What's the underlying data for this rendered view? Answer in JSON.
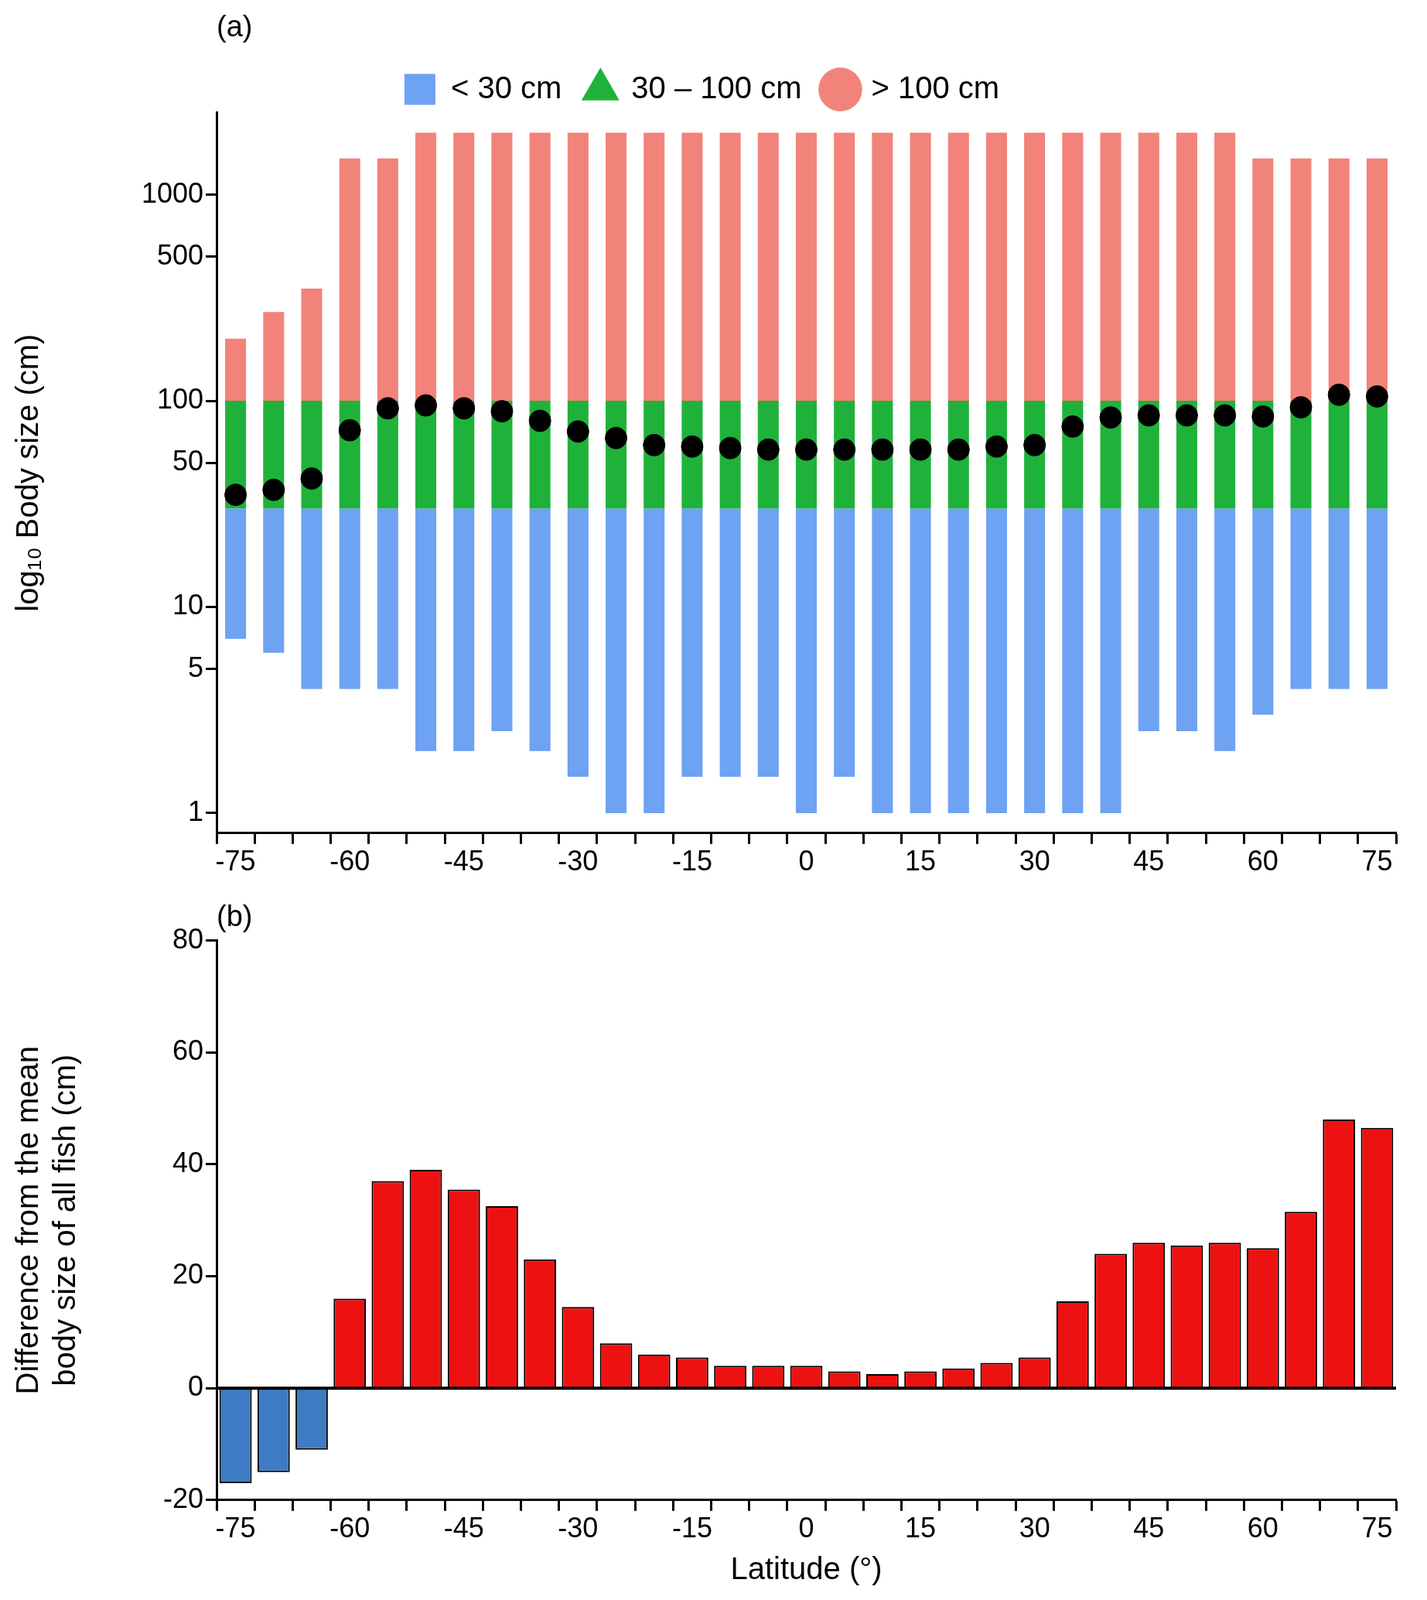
{
  "chart_data": [
    {
      "type": "bar",
      "title": "(a)",
      "y_label": "log₁₀ Body size (cm)",
      "categories": [
        -75,
        null,
        null,
        -60,
        null,
        null,
        -45,
        null,
        null,
        -30,
        null,
        null,
        -15,
        null,
        null,
        0,
        null,
        null,
        15,
        null,
        null,
        30,
        null,
        null,
        45,
        null,
        null,
        60,
        null,
        null,
        75
      ],
      "series": [
        {
          "name": "< 30 cm",
          "color": "#6ea2f2",
          "marker": "square",
          "values": [
            [
              7,
              30
            ],
            [
              6,
              30
            ],
            [
              4,
              30
            ],
            [
              4,
              30
            ],
            [
              4,
              30
            ],
            [
              2,
              30
            ],
            [
              2,
              30
            ],
            [
              2.5,
              30
            ],
            [
              2,
              30
            ],
            [
              1.5,
              30
            ],
            [
              1,
              30
            ],
            [
              1,
              30
            ],
            [
              1.5,
              30
            ],
            [
              1.5,
              30
            ],
            [
              1.5,
              30
            ],
            [
              1,
              30
            ],
            [
              1.5,
              30
            ],
            [
              1,
              30
            ],
            [
              1,
              30
            ],
            [
              1,
              30
            ],
            [
              1,
              30
            ],
            [
              1,
              30
            ],
            [
              1,
              30
            ],
            [
              1,
              30
            ],
            [
              2.5,
              30
            ],
            [
              2.5,
              30
            ],
            [
              2,
              30
            ],
            [
              3,
              30
            ],
            [
              4,
              30
            ],
            [
              4,
              30
            ],
            [
              4,
              30
            ]
          ]
        },
        {
          "name": "30 – 100 cm",
          "color": "#1fb23a",
          "marker": "triangle",
          "values": [
            [
              30,
              100
            ],
            [
              30,
              100
            ],
            [
              30,
              100
            ],
            [
              30,
              100
            ],
            [
              30,
              100
            ],
            [
              30,
              100
            ],
            [
              30,
              100
            ],
            [
              30,
              100
            ],
            [
              30,
              100
            ],
            [
              30,
              100
            ],
            [
              30,
              100
            ],
            [
              30,
              100
            ],
            [
              30,
              100
            ],
            [
              30,
              100
            ],
            [
              30,
              100
            ],
            [
              30,
              100
            ],
            [
              30,
              100
            ],
            [
              30,
              100
            ],
            [
              30,
              100
            ],
            [
              30,
              100
            ],
            [
              30,
              100
            ],
            [
              30,
              100
            ],
            [
              30,
              100
            ],
            [
              30,
              100
            ],
            [
              30,
              100
            ],
            [
              30,
              100
            ],
            [
              30,
              100
            ],
            [
              30,
              100
            ],
            [
              30,
              100
            ],
            [
              30,
              100
            ],
            [
              30,
              100
            ]
          ]
        },
        {
          "name": "> 100 cm",
          "color": "#f2837a",
          "marker": "circle",
          "values": [
            [
              100,
              200
            ],
            [
              100,
              270
            ],
            [
              100,
              350
            ],
            [
              100,
              1500
            ],
            [
              100,
              1500
            ],
            [
              100,
              2000
            ],
            [
              100,
              2000
            ],
            [
              100,
              2000
            ],
            [
              100,
              2000
            ],
            [
              100,
              2000
            ],
            [
              100,
              2000
            ],
            [
              100,
              2000
            ],
            [
              100,
              2000
            ],
            [
              100,
              2000
            ],
            [
              100,
              2000
            ],
            [
              100,
              2000
            ],
            [
              100,
              2000
            ],
            [
              100,
              2000
            ],
            [
              100,
              2000
            ],
            [
              100,
              2000
            ],
            [
              100,
              2000
            ],
            [
              100,
              2000
            ],
            [
              100,
              2000
            ],
            [
              100,
              2000
            ],
            [
              100,
              2000
            ],
            [
              100,
              2000
            ],
            [
              100,
              2000
            ],
            [
              100,
              1500
            ],
            [
              100,
              1500
            ],
            [
              100,
              1500
            ],
            [
              100,
              1500
            ]
          ]
        }
      ],
      "mean_values": [
        35,
        37,
        42,
        72,
        92,
        95,
        92,
        89,
        80,
        71,
        66,
        61,
        60,
        59,
        58,
        58,
        58,
        58,
        58,
        58,
        60,
        61,
        75,
        83,
        85,
        85,
        85,
        84,
        93,
        107,
        105
      ],
      "log": "y",
      "ylim": [
        0.8,
        2500
      ],
      "yticks": [
        1,
        5,
        10,
        50,
        100,
        500,
        1000
      ],
      "grid": false,
      "legend": "top"
    },
    {
      "type": "bar",
      "title": "(b)",
      "x_label": "Latitude (°)",
      "y_label": [
        "Difference from the mean",
        "body size of all fish (cm)"
      ],
      "categories": [
        -75,
        null,
        null,
        -60,
        null,
        null,
        -45,
        null,
        null,
        -30,
        null,
        null,
        -15,
        null,
        null,
        0,
        null,
        null,
        15,
        null,
        null,
        30,
        null,
        null,
        45,
        null,
        null,
        60,
        null,
        null,
        75
      ],
      "values": [
        -17,
        -15,
        -11,
        16,
        37,
        39,
        35.5,
        32.5,
        23,
        14.5,
        8,
        6,
        5.5,
        4,
        4,
        4,
        3,
        2.5,
        3,
        3.5,
        4.5,
        5.5,
        15.5,
        24,
        26,
        25.5,
        26,
        25,
        31.5,
        48,
        46.5
      ],
      "colors": [
        "#3d7bc4",
        "#3d7bc4",
        "#3d7bc4",
        "#ee1111",
        "#ee1111",
        "#ee1111",
        "#ee1111",
        "#ee1111",
        "#ee1111",
        "#ee1111",
        "#ee1111",
        "#ee1111",
        "#ee1111",
        "#ee1111",
        "#ee1111",
        "#ee1111",
        "#ee1111",
        "#ee1111",
        "#ee1111",
        "#ee1111",
        "#ee1111",
        "#ee1111",
        "#ee1111",
        "#ee1111",
        "#ee1111",
        "#ee1111",
        "#ee1111",
        "#ee1111",
        "#ee1111",
        "#ee1111",
        "#ee1111"
      ],
      "ylim": [
        -20,
        80
      ],
      "yticks": [
        -20,
        0,
        20,
        40,
        60,
        80
      ],
      "grid": false
    }
  ]
}
